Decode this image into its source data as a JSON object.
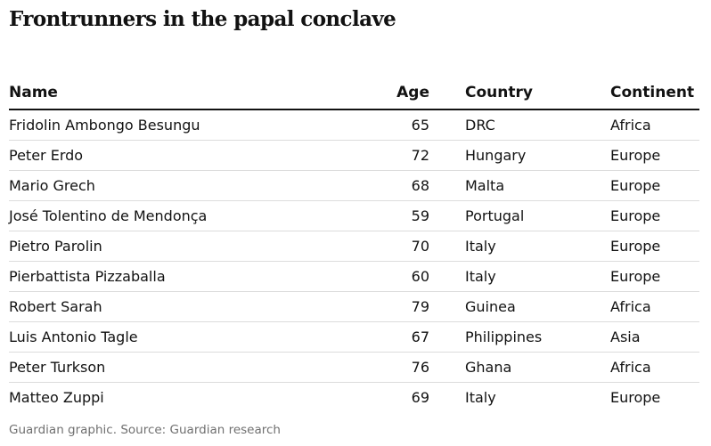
{
  "title": "Frontrunners in the papal conclave",
  "columns": {
    "name": "Name",
    "age": "Age",
    "country": "Country",
    "continent": "Continent"
  },
  "rows": [
    {
      "name": "Fridolin Ambongo Besungu",
      "age": "65",
      "country": "DRC",
      "continent": "Africa"
    },
    {
      "name": "Peter Erdo",
      "age": "72",
      "country": "Hungary",
      "continent": "Europe"
    },
    {
      "name": "Mario Grech",
      "age": "68",
      "country": "Malta",
      "continent": "Europe"
    },
    {
      "name": "José Tolentino de Mendonça",
      "age": "59",
      "country": "Portugal",
      "continent": "Europe"
    },
    {
      "name": "Pietro Parolin",
      "age": "70",
      "country": "Italy",
      "continent": "Europe"
    },
    {
      "name": "Pierbattista Pizzaballa",
      "age": "60",
      "country": "Italy",
      "continent": "Europe"
    },
    {
      "name": "Robert Sarah",
      "age": "79",
      "country": "Guinea",
      "continent": "Africa"
    },
    {
      "name": "Luis Antonio Tagle",
      "age": "67",
      "country": "Philippines",
      "continent": "Asia"
    },
    {
      "name": "Peter Turkson",
      "age": "76",
      "country": "Ghana",
      "continent": "Africa"
    },
    {
      "name": "Matteo Zuppi",
      "age": "69",
      "country": "Italy",
      "continent": "Europe"
    }
  ],
  "source": "Guardian graphic. Source: Guardian research"
}
